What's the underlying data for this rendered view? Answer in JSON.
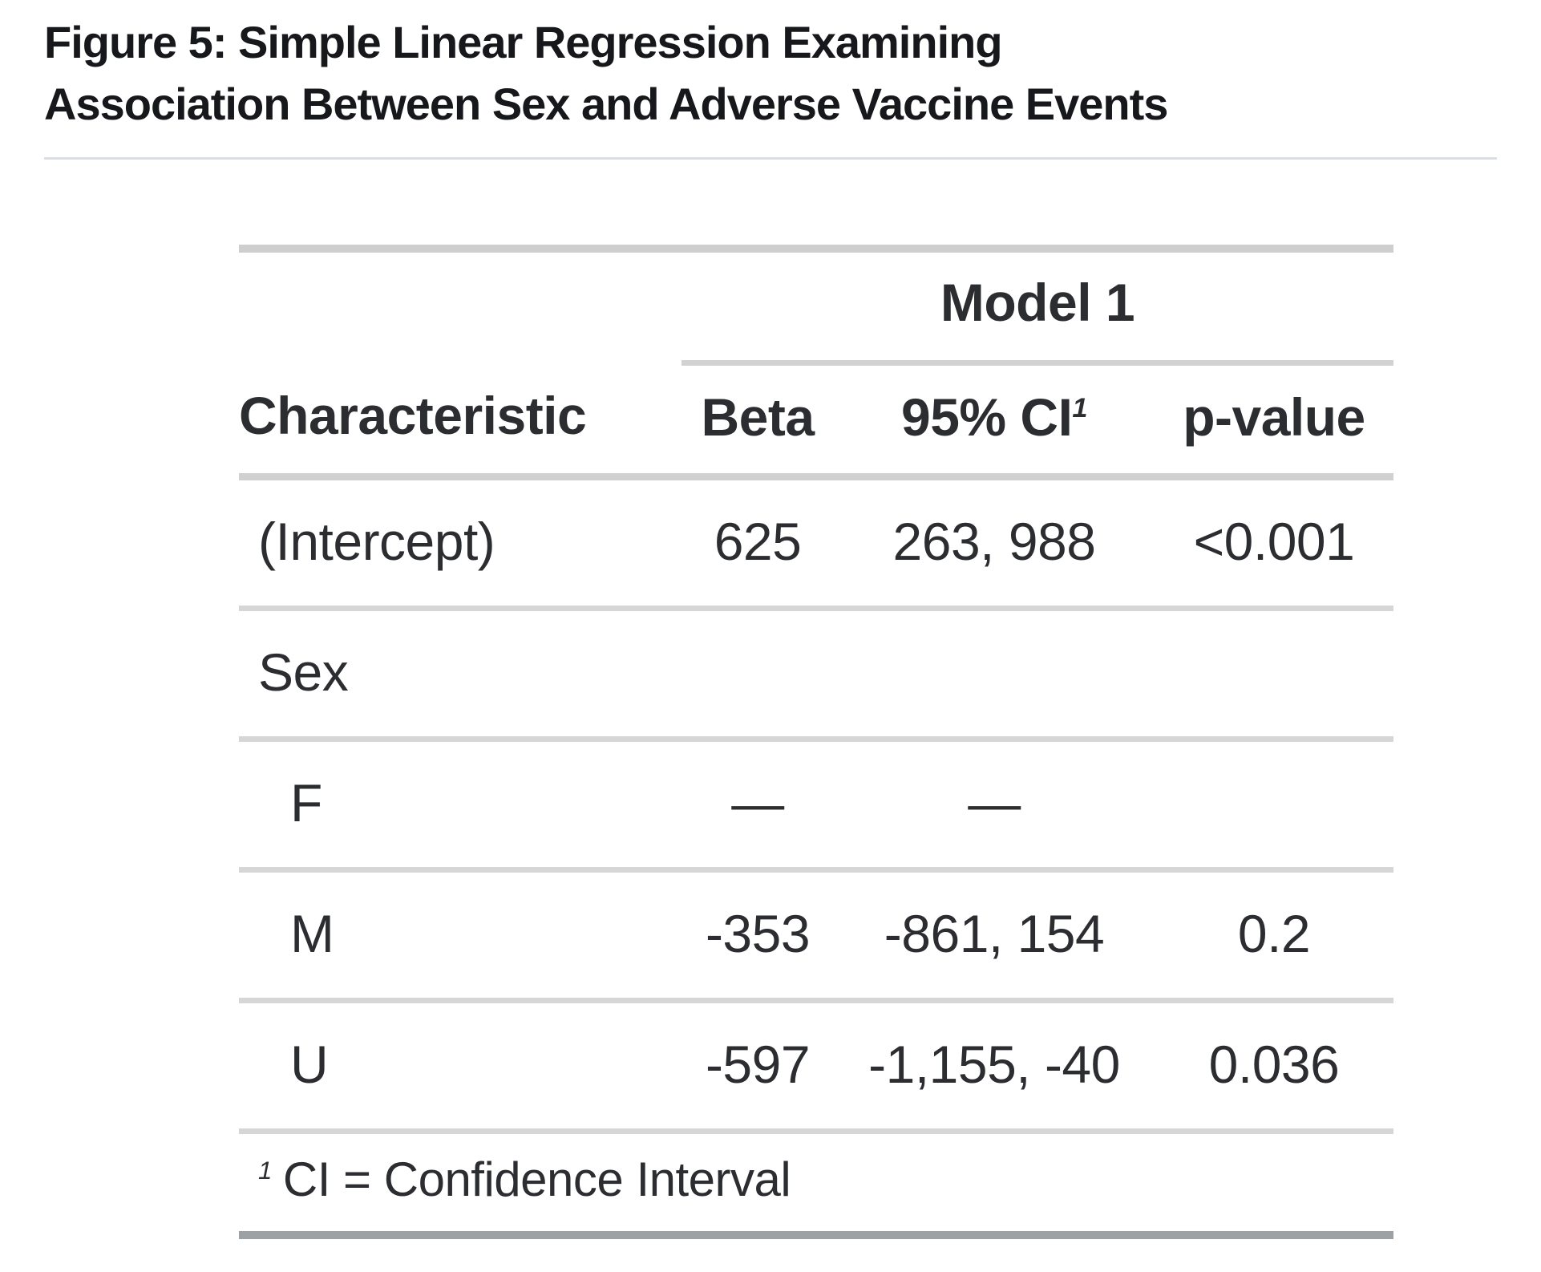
{
  "title": {
    "line1": "Figure 5: Simple Linear Regression Examining",
    "line2": "Association Between Sex and Adverse Vaccine Events"
  },
  "table": {
    "spanner": "Model 1",
    "columns": [
      "Characteristic",
      "Beta",
      "95% CI",
      "p-value"
    ],
    "rows": [
      {
        "label": "(Intercept)",
        "beta": "625",
        "ci": "263, 988",
        "p": "<0.001"
      },
      {
        "label": "Sex",
        "beta": "",
        "ci": "",
        "p": ""
      },
      {
        "label": "F",
        "beta": "—",
        "ci": "—",
        "p": ""
      },
      {
        "label": "M",
        "beta": "-353",
        "ci": "-861, 154",
        "p": "0.2"
      },
      {
        "label": "U",
        "beta": "-597",
        "ci": "-1,155, -40",
        "p": "0.036"
      }
    ],
    "footnote": {
      "mark": "1",
      "text": "CI = Confidence Interval"
    }
  },
  "colors": {
    "text": "#2b2d31",
    "title_text": "#17181b",
    "border_light": "#d4d4d4",
    "border_dark": "#9ea1a4",
    "title_divider": "#dbdee3"
  },
  "chart_data": {
    "type": "table",
    "title": "Figure 5: Simple Linear Regression Examining Association Between Sex and Adverse Vaccine Events",
    "spanner": {
      "label": "Model 1",
      "spans_columns": [
        "Beta",
        "95% CI",
        "p-value"
      ]
    },
    "columns": [
      "Characteristic",
      "Beta",
      "95% CI",
      "p-value"
    ],
    "rows": [
      [
        "(Intercept)",
        "625",
        "263, 988",
        "<0.001"
      ],
      [
        "Sex",
        "",
        "",
        ""
      ],
      [
        "F",
        "—",
        "—",
        ""
      ],
      [
        "M",
        "-353",
        "-861, 154",
        "0.2"
      ],
      [
        "U",
        "-597",
        "-1,155, -40",
        "0.036"
      ]
    ],
    "indented_rows": [
      "F",
      "M",
      "U"
    ],
    "footnotes": [
      "1 CI = Confidence Interval"
    ],
    "layout": {
      "label_column_align": "left",
      "value_columns_align": "center"
    }
  }
}
